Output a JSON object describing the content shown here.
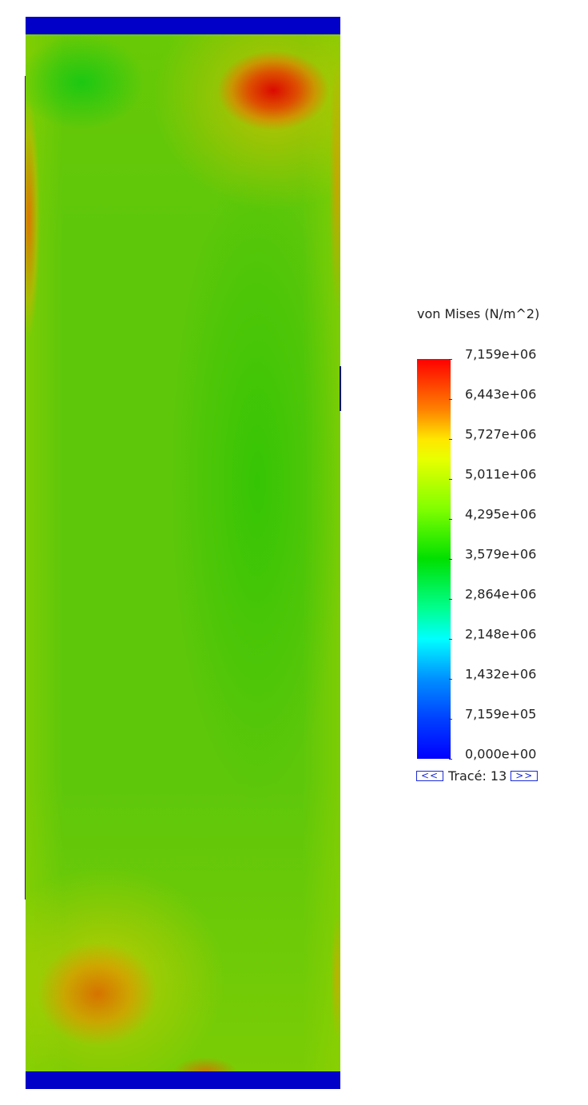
{
  "legend": {
    "title": "von Mises (N/m^2)",
    "labels": [
      "7,159e+06",
      "6,443e+06",
      "5,727e+06",
      "5,011e+06",
      "4,295e+06",
      "3,579e+06",
      "2,864e+06",
      "2,148e+06",
      "1,432e+06",
      "7,159e+05",
      "0,000e+00"
    ],
    "colors": {
      "max": "#ff0000",
      "min": "#0000ff"
    }
  },
  "navigation": {
    "prev_label": "<<",
    "plot_label": "Tracé: 13",
    "next_label": ">>"
  },
  "plot": {
    "cap_color": "#0000c8",
    "base_color": "#63c808"
  }
}
